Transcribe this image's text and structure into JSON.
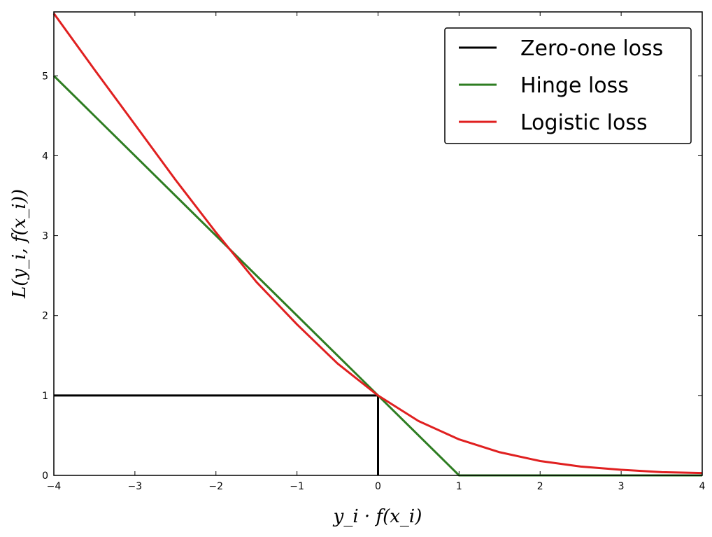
{
  "chart_data": {
    "type": "line",
    "xlabel": "y_i · f(x_i)",
    "ylabel": "L(y_i, f(x_i))",
    "xlim": [
      -4,
      4
    ],
    "ylim": [
      0,
      5.8
    ],
    "x_ticks": [
      -4,
      -3,
      -2,
      -1,
      0,
      1,
      2,
      3,
      4
    ],
    "x_tick_labels": [
      "−4",
      "−3",
      "−2",
      "−1",
      "0",
      "1",
      "2",
      "3",
      "4"
    ],
    "y_ticks": [
      0,
      1,
      2,
      3,
      4,
      5
    ],
    "y_tick_labels": [
      "0",
      "1",
      "2",
      "3",
      "4",
      "5"
    ],
    "grid": false,
    "legend_position": "top-right",
    "series": [
      {
        "name": "Zero-one loss",
        "color": "#000000",
        "x": [
          -4,
          0,
          0,
          0
        ],
        "y": [
          1,
          1,
          1,
          0
        ]
      },
      {
        "name": "Hinge loss",
        "color": "#2e7d22",
        "x": [
          -4,
          1,
          4
        ],
        "y": [
          5,
          0,
          0
        ]
      },
      {
        "name": "Logistic loss",
        "color": "#e02020",
        "x": [
          -4,
          -3.5,
          -3,
          -2.5,
          -2,
          -1.5,
          -1,
          -0.5,
          0,
          0.5,
          1,
          1.5,
          2,
          2.5,
          3,
          3.5,
          4
        ],
        "y": [
          5.78,
          5.08,
          4.39,
          3.7,
          3.04,
          2.42,
          1.89,
          1.4,
          1.0,
          0.68,
          0.45,
          0.29,
          0.18,
          0.11,
          0.07,
          0.04,
          0.03
        ]
      }
    ]
  }
}
